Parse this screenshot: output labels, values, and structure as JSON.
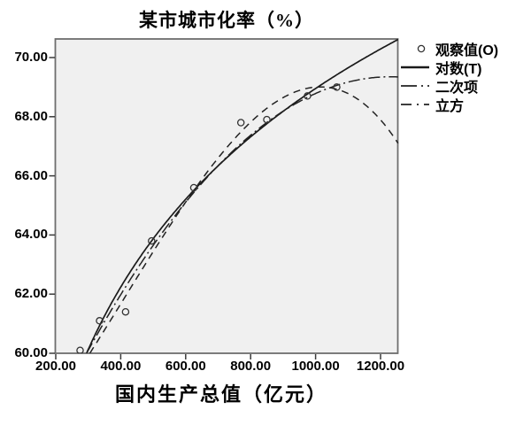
{
  "colors": {
    "background": "#ffffff",
    "plot_bg": "#f0f0f0",
    "frame": "#6e6e6e",
    "tick": "#3a3a3a",
    "line": "#1a1a1a",
    "marker": "#333333",
    "text": "#000000"
  },
  "chart_data": {
    "type": "scatter",
    "subtype": "scatter-with-fit-curves",
    "title": "某市城市化率（%）",
    "xlabel": "国内生产总值（亿元）",
    "ylabel": "",
    "grid": false,
    "xlim": [
      200,
      1254
    ],
    "ylim": [
      60,
      70.63
    ],
    "x_ticks": {
      "values": [
        200,
        400,
        600,
        800,
        1000,
        1200
      ],
      "labels": [
        "200.00",
        "400.00",
        "600.00",
        "800.00",
        "1000.00",
        "1200.00"
      ]
    },
    "y_ticks": {
      "values": [
        60,
        62,
        64,
        66,
        68,
        70
      ],
      "labels": [
        "60.00",
        "62.00",
        "64.00",
        "66.00",
        "68.00",
        "70.00"
      ]
    },
    "observed": {
      "name": "观察值(O)",
      "x": [
        275,
        335,
        415,
        495,
        625,
        770,
        850,
        975,
        1065
      ],
      "y": [
        60.1,
        61.1,
        61.4,
        63.8,
        65.6,
        67.8,
        67.9,
        68.7,
        69.0
      ]
    },
    "fits": [
      {
        "name": "对数(T)",
        "model": "logarithmic",
        "style": "solid",
        "x_start": 295,
        "params": {
          "a": 18.32,
          "b": 7.33
        }
      },
      {
        "name": "二次项",
        "model": "quadratic",
        "style": "dashdot",
        "x_start": 295,
        "params": {
          "peak_x": 1230,
          "peak_y": 69.35,
          "c": -1.0695e-05
        }
      },
      {
        "name": "立方",
        "model": "cubic",
        "style": "dashed",
        "x_start": 305,
        "params": {
          "a3": -0.016189,
          "a2": 0.19896,
          "a1": 0.9619,
          "a0": 55.6747,
          "t_scale": 100
        }
      }
    ],
    "legend": {
      "position": "top-right-outside",
      "entries": [
        {
          "label": "观察值(O)",
          "type": "marker"
        },
        {
          "label": "对数(T)",
          "type": "solid"
        },
        {
          "label": "二次项",
          "type": "dashdot"
        },
        {
          "label": "立方",
          "type": "dashed"
        }
      ]
    }
  }
}
